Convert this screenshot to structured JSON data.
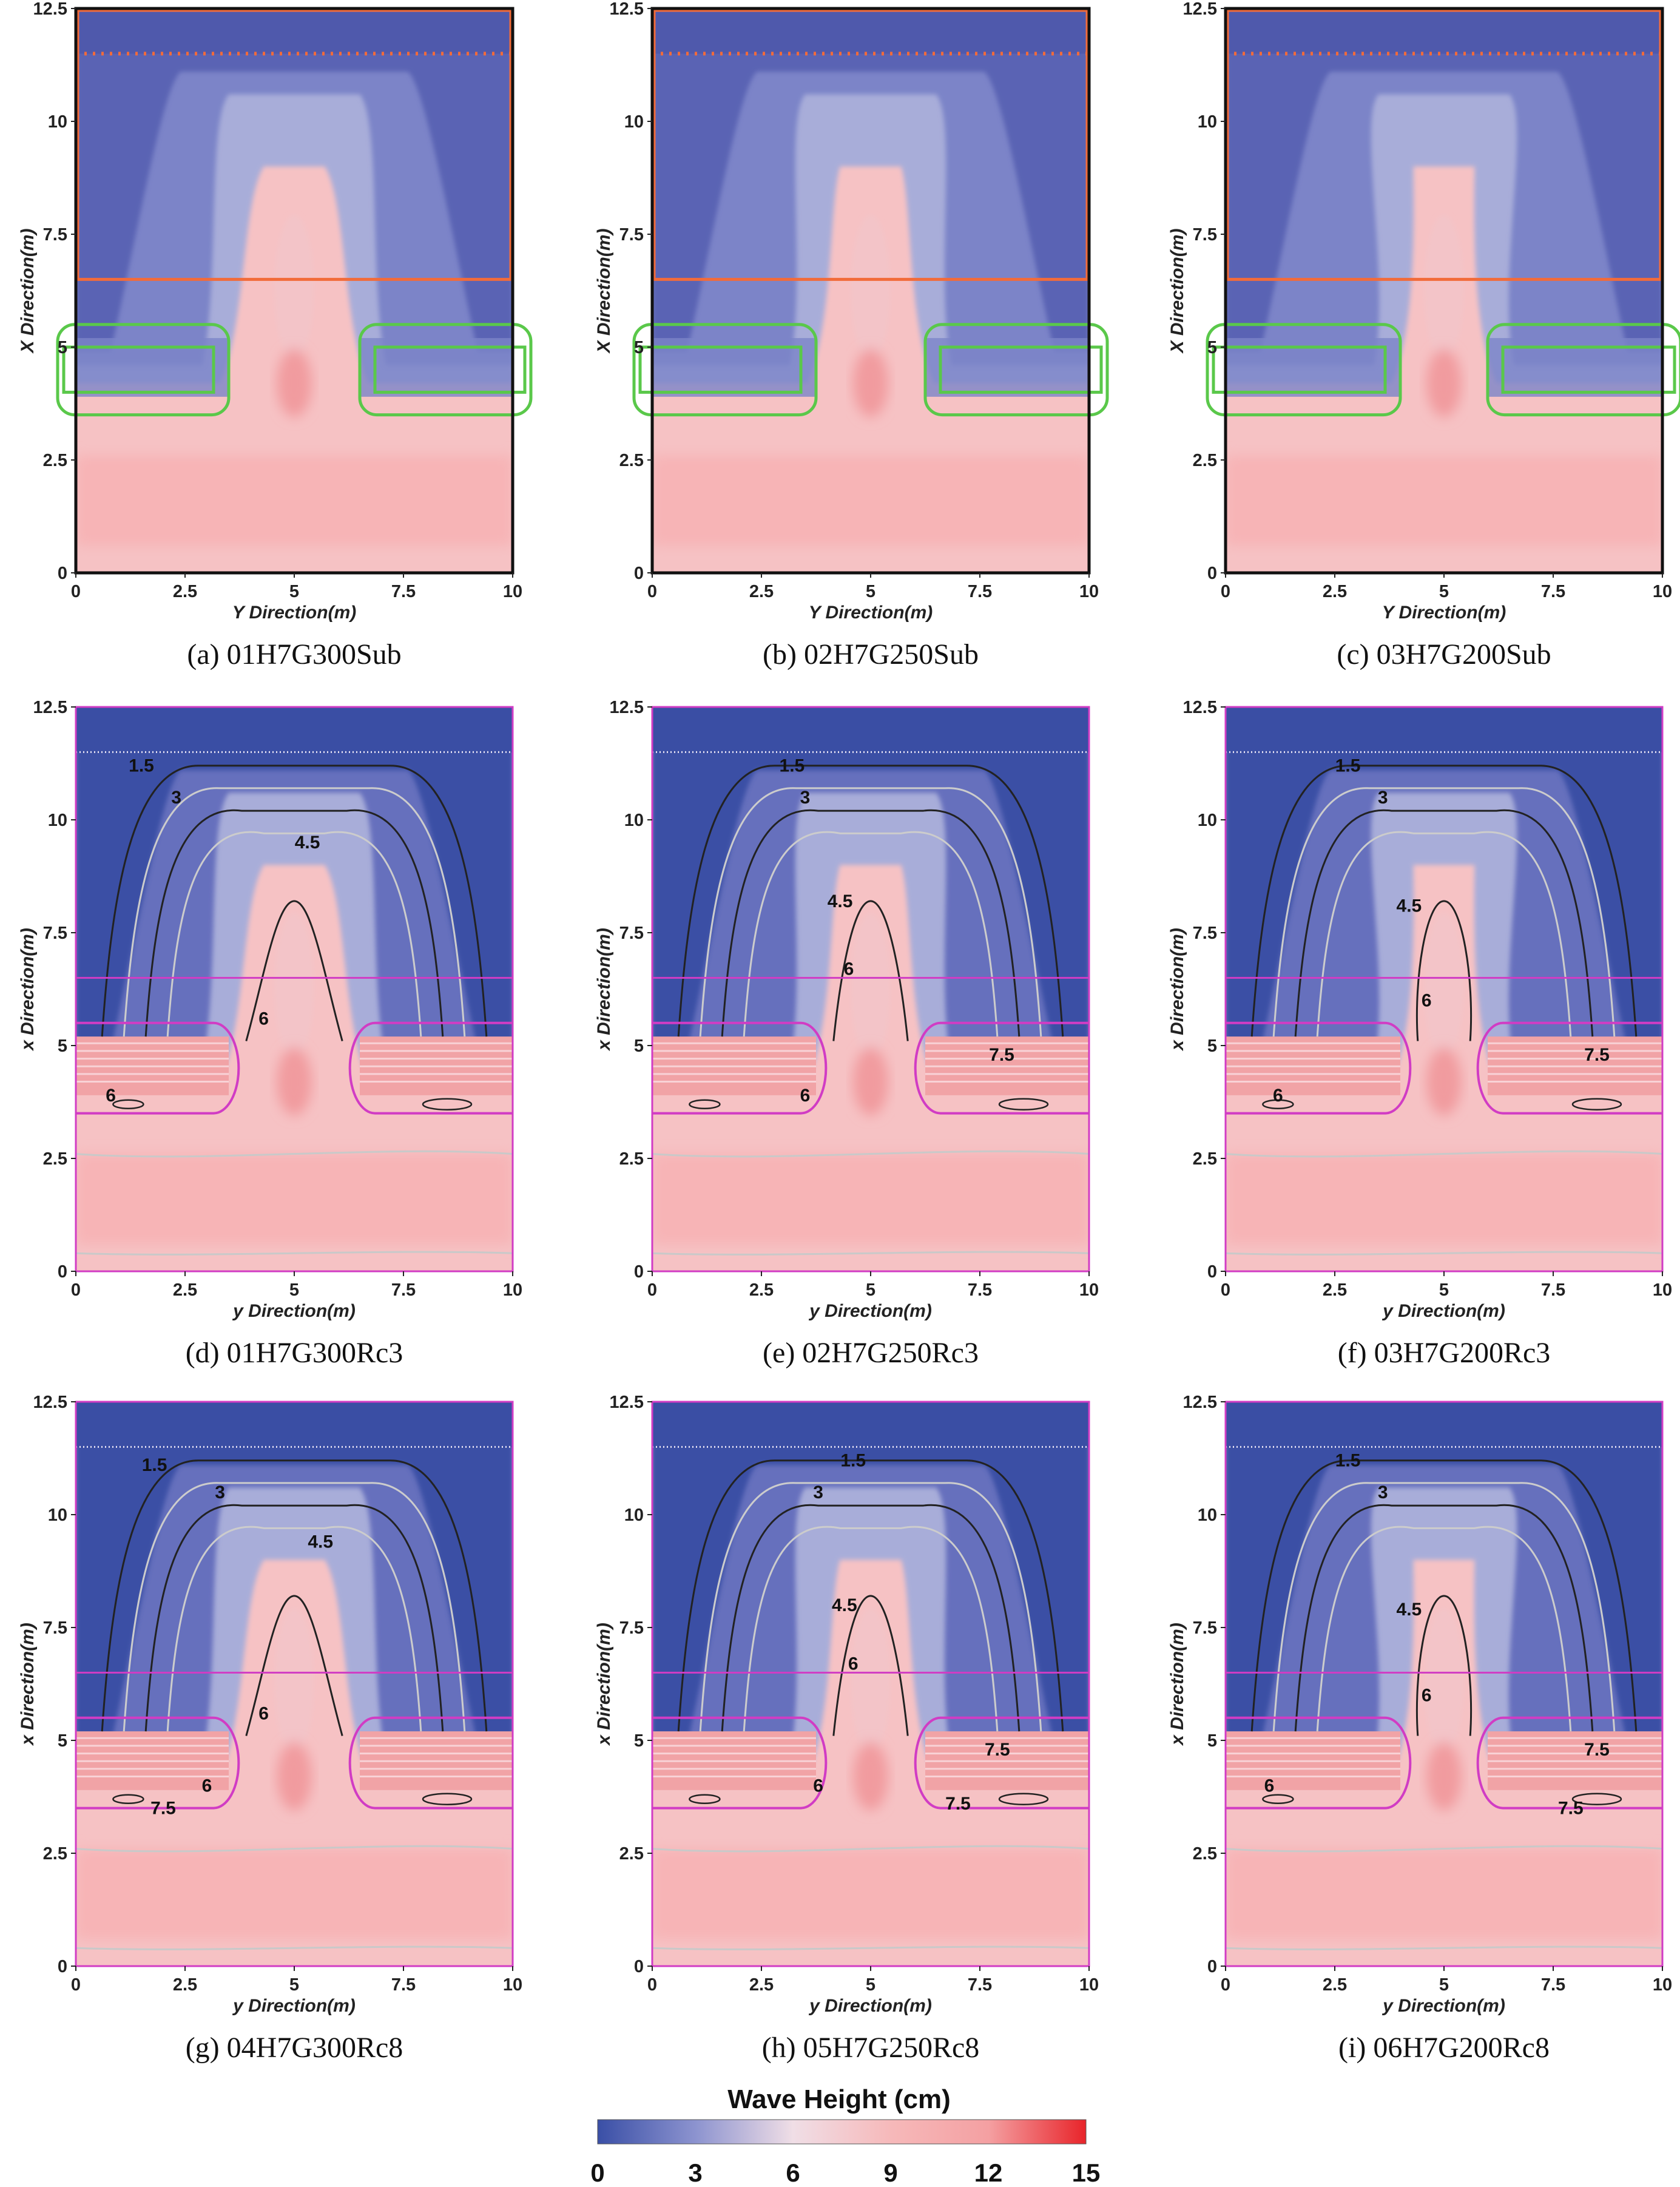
{
  "chart_data": {
    "type": "heatmap",
    "colorbar": {
      "title": "Wave Height (cm)",
      "ticks": [
        "0",
        "3",
        "6",
        "9",
        "12",
        "15"
      ],
      "range": [
        0,
        15
      ],
      "colors": [
        "#3a4fa6",
        "#8c93cf",
        "#f0dee6",
        "#f6b9ba",
        "#f4a0a2",
        "#e8242a"
      ]
    },
    "panels": [
      {
        "id": "a",
        "caption": "(a) 01H7G300Sub",
        "xlabel": "Y Direction(m)",
        "ylabel": "X Direction(m)",
        "style": "sub",
        "gap": 3.0,
        "contour_labels": []
      },
      {
        "id": "b",
        "caption": "(b) 02H7G250Sub",
        "xlabel": "Y Direction(m)",
        "ylabel": "X Direction(m)",
        "style": "sub",
        "gap": 2.5,
        "contour_labels": []
      },
      {
        "id": "c",
        "caption": "(c) 03H7G200Sub",
        "xlabel": "Y Direction(m)",
        "ylabel": "X Direction(m)",
        "style": "sub",
        "gap": 2.0,
        "contour_labels": []
      },
      {
        "id": "d",
        "caption": "(d) 01H7G300Rc3",
        "xlabel": "y Direction(m)",
        "ylabel": "x Direction(m)",
        "style": "rc",
        "gap": 3.0,
        "contour_labels": [
          {
            "text": "1.5",
            "y": 1.5,
            "x": 11.2
          },
          {
            "text": "3",
            "y": 2.3,
            "x": 10.5
          },
          {
            "text": "4.5",
            "y": 5.3,
            "x": 9.5
          },
          {
            "text": "6",
            "y": 4.3,
            "x": 5.6
          },
          {
            "text": "6",
            "y": 0.8,
            "x": 3.9
          }
        ]
      },
      {
        "id": "e",
        "caption": "(e) 02H7G250Rc3",
        "xlabel": "y Direction(m)",
        "ylabel": "x Direction(m)",
        "style": "rc",
        "gap": 2.5,
        "contour_labels": [
          {
            "text": "1.5",
            "y": 3.2,
            "x": 11.2
          },
          {
            "text": "3",
            "y": 3.5,
            "x": 10.5
          },
          {
            "text": "4.5",
            "y": 4.3,
            "x": 8.2
          },
          {
            "text": "6",
            "y": 4.5,
            "x": 6.7
          },
          {
            "text": "7.5",
            "y": 8.0,
            "x": 4.8
          },
          {
            "text": "6",
            "y": 3.5,
            "x": 3.9
          }
        ]
      },
      {
        "id": "f",
        "caption": "(f) 03H7G200Rc3",
        "xlabel": "y Direction(m)",
        "ylabel": "x Direction(m)",
        "style": "rc",
        "gap": 2.0,
        "contour_labels": [
          {
            "text": "1.5",
            "y": 2.8,
            "x": 11.2
          },
          {
            "text": "3",
            "y": 3.6,
            "x": 10.5
          },
          {
            "text": "4.5",
            "y": 4.2,
            "x": 8.1
          },
          {
            "text": "6",
            "y": 4.6,
            "x": 6.0
          },
          {
            "text": "7.5",
            "y": 8.5,
            "x": 4.8
          },
          {
            "text": "6",
            "y": 1.2,
            "x": 3.9
          }
        ]
      },
      {
        "id": "g",
        "caption": "(g) 04H7G300Rc8",
        "xlabel": "y Direction(m)",
        "ylabel": "x Direction(m)",
        "style": "rc",
        "gap": 3.0,
        "contour_labels": [
          {
            "text": "1.5",
            "y": 1.8,
            "x": 11.1
          },
          {
            "text": "3",
            "y": 3.3,
            "x": 10.5
          },
          {
            "text": "4.5",
            "y": 5.6,
            "x": 9.4
          },
          {
            "text": "6",
            "y": 4.3,
            "x": 5.6
          },
          {
            "text": "6",
            "y": 3.0,
            "x": 4.0
          },
          {
            "text": "7.5",
            "y": 2.0,
            "x": 3.5
          }
        ]
      },
      {
        "id": "h",
        "caption": "(h) 05H7G250Rc8",
        "xlabel": "y Direction(m)",
        "ylabel": "x Direction(m)",
        "style": "rc",
        "gap": 2.5,
        "contour_labels": [
          {
            "text": "1.5",
            "y": 4.6,
            "x": 11.2
          },
          {
            "text": "3",
            "y": 3.8,
            "x": 10.5
          },
          {
            "text": "4.5",
            "y": 4.4,
            "x": 8.0
          },
          {
            "text": "6",
            "y": 4.6,
            "x": 6.7
          },
          {
            "text": "6",
            "y": 3.8,
            "x": 4.0
          },
          {
            "text": "7.5",
            "y": 7.9,
            "x": 4.8
          },
          {
            "text": "7.5",
            "y": 7.0,
            "x": 3.6
          }
        ]
      },
      {
        "id": "i",
        "caption": "(i) 06H7G200Rc8",
        "xlabel": "y Direction(m)",
        "ylabel": "x Direction(m)",
        "style": "rc",
        "gap": 2.0,
        "contour_labels": [
          {
            "text": "1.5",
            "y": 2.8,
            "x": 11.2
          },
          {
            "text": "3",
            "y": 3.6,
            "x": 10.5
          },
          {
            "text": "4.5",
            "y": 4.2,
            "x": 7.9
          },
          {
            "text": "6",
            "y": 4.6,
            "x": 6.0
          },
          {
            "text": "6",
            "y": 1.0,
            "x": 4.0
          },
          {
            "text": "7.5",
            "y": 8.5,
            "x": 4.8
          },
          {
            "text": "7.5",
            "y": 7.9,
            "x": 3.5
          }
        ]
      }
    ],
    "xaxis": {
      "range": [
        0,
        10
      ],
      "ticks": [
        "0",
        "2.5",
        "5",
        "7.5",
        "10"
      ]
    },
    "yaxis": {
      "range": [
        0,
        12.5
      ],
      "ticks": [
        "0",
        "2.5",
        "5",
        "7.5",
        "10",
        "12.5"
      ]
    }
  }
}
